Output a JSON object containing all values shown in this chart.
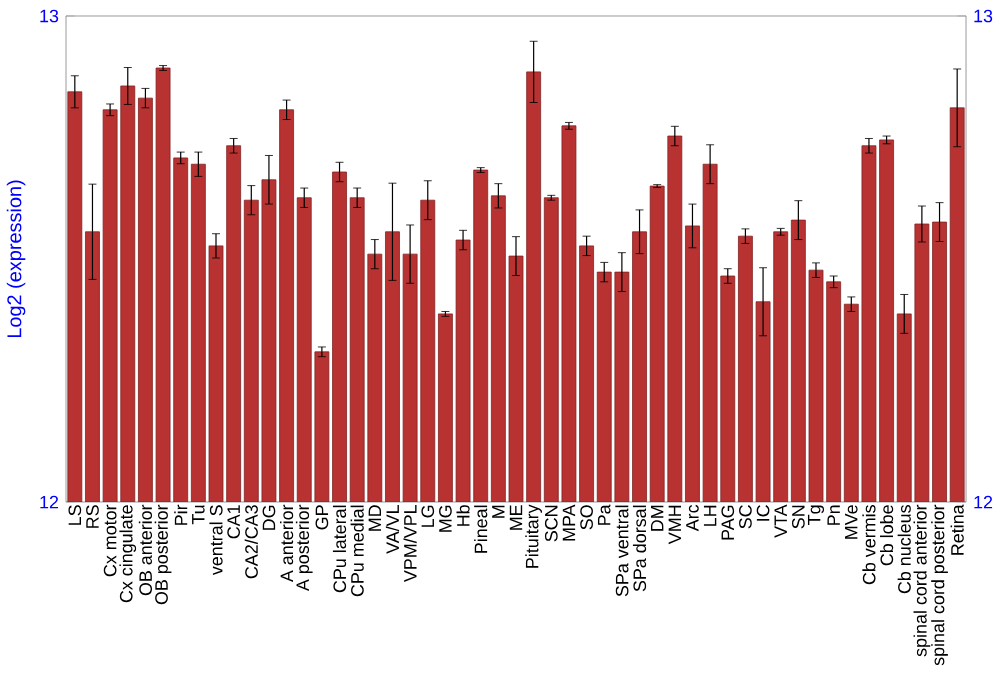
{
  "chart_data": {
    "type": "bar",
    "ylabel": "Log2 (expression)",
    "color": "#b83232",
    "categories": [
      "LS",
      "RS",
      "Cx motor",
      "Cx cingulate",
      "OB anterior",
      "OB posterior",
      "Pir",
      "Tu",
      "ventral S",
      "CA1",
      "CA2/CA3",
      "DG",
      "A anterior",
      "A posterior",
      "GP",
      "CPu lateral",
      "CPu medial",
      "MD",
      "VA/VL",
      "VPM/VPL",
      "LG",
      "MG",
      "Hb",
      "Pineal",
      "M",
      "ME",
      "Pituitary",
      "SCN",
      "MPA",
      "SO",
      "Pa",
      "SPa ventral",
      "SPa dorsal",
      "DM",
      "VMH",
      "Arc",
      "LH",
      "PAG",
      "SC",
      "IC",
      "VTA",
      "SN",
      "Tg",
      "Pn",
      "MVe",
      "Cb vermis",
      "Cb lobe",
      "Cb nucleus",
      "spinal cord anterior",
      "spinal cord posterior",
      "Retina"
    ],
    "values": [
      12.844,
      12.556,
      12.807,
      12.856,
      12.831,
      12.893,
      12.708,
      12.695,
      12.527,
      12.733,
      12.621,
      12.663,
      12.807,
      12.626,
      12.309,
      12.679,
      12.626,
      12.51,
      12.556,
      12.51,
      12.621,
      12.387,
      12.539,
      12.683,
      12.63,
      12.506,
      12.885,
      12.626,
      12.774,
      12.527,
      12.473,
      12.473,
      12.556,
      12.65,
      12.753,
      12.568,
      12.695,
      12.465,
      12.547,
      12.412,
      12.556,
      12.58,
      12.477,
      12.453,
      12.407,
      12.733,
      12.745,
      12.387,
      12.572,
      12.576,
      12.811
    ],
    "errors": [
      0.033,
      0.098,
      0.012,
      0.038,
      0.02,
      0.005,
      0.012,
      0.025,
      0.025,
      0.015,
      0.03,
      0.05,
      0.02,
      0.02,
      0.01,
      0.02,
      0.02,
      0.03,
      0.1,
      0.06,
      0.04,
      0.005,
      0.02,
      0.005,
      0.025,
      0.04,
      0.063,
      0.005,
      0.007,
      0.02,
      0.02,
      0.04,
      0.045,
      0.003,
      0.02,
      0.045,
      0.04,
      0.015,
      0.015,
      0.07,
      0.007,
      0.04,
      0.015,
      0.012,
      0.015,
      0.015,
      0.008,
      0.04,
      0.037,
      0.04,
      0.08
    ],
    "ylim": [
      12,
      13
    ],
    "yticks": [
      12,
      13
    ],
    "y2lim": [
      12,
      13
    ],
    "y2ticks": [
      12,
      13
    ]
  }
}
